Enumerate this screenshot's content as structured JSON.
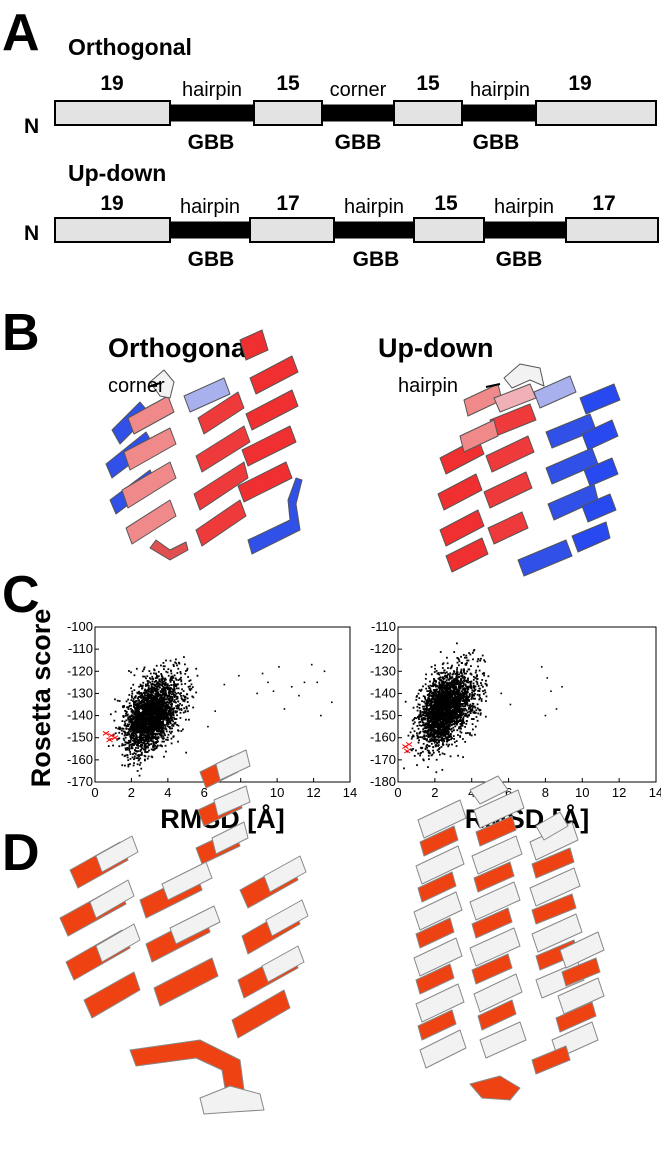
{
  "panel_a": {
    "label": "A",
    "rows": [
      {
        "title": "Orthogonal",
        "terminus": "N",
        "segments": [
          {
            "type": "helix",
            "label": "19"
          },
          {
            "type": "loop",
            "label": "hairpin",
            "sublabel": "GBB"
          },
          {
            "type": "helix",
            "label": "15"
          },
          {
            "type": "loop",
            "label": "corner",
            "sublabel": "GBB"
          },
          {
            "type": "helix",
            "label": "15"
          },
          {
            "type": "loop",
            "label": "hairpin",
            "sublabel": "GBB"
          },
          {
            "type": "helix",
            "label": "19"
          }
        ]
      },
      {
        "title": "Up-down",
        "terminus": "N",
        "segments": [
          {
            "type": "helix",
            "label": "19"
          },
          {
            "type": "loop",
            "label": "hairpin",
            "sublabel": "GBB"
          },
          {
            "type": "helix",
            "label": "17"
          },
          {
            "type": "loop",
            "label": "hairpin",
            "sublabel": "GBB"
          },
          {
            "type": "helix",
            "label": "15"
          },
          {
            "type": "loop",
            "label": "hairpin",
            "sublabel": "GBB"
          },
          {
            "type": "helix",
            "label": "17"
          }
        ]
      }
    ]
  },
  "panel_b": {
    "label": "B",
    "left_title": "Orthogonal",
    "left_annotation": "corner",
    "right_title": "Up-down",
    "right_annotation": "hairpin"
  },
  "panel_c": {
    "label": "C",
    "shared_ylabel": "Rosetta score"
  },
  "chart_data": [
    {
      "type": "scatter",
      "xlabel": "RMSD [Å]",
      "ylabel": "Rosetta score",
      "xlim": [
        0,
        14
      ],
      "ylim": [
        -170,
        -100
      ],
      "xticks": [
        0,
        2,
        4,
        6,
        8,
        10,
        12,
        14
      ],
      "yticks": [
        -100,
        -110,
        -120,
        -130,
        -140,
        -150,
        -160,
        -170
      ],
      "grid": false,
      "colors": {
        "decoys": "#000000",
        "native": "#ff0000"
      },
      "dense_cloud": {
        "x_range": [
          0.6,
          5.8
        ],
        "y_range": [
          -168,
          -112
        ],
        "center": [
          2.4,
          -143
        ]
      },
      "sparse_points": [
        [
          9.2,
          -121
        ],
        [
          9.8,
          -129
        ],
        [
          10.1,
          -118
        ],
        [
          10.4,
          -137
        ],
        [
          10.8,
          -127
        ],
        [
          11.2,
          -131
        ],
        [
          11.9,
          -117
        ],
        [
          12.2,
          -125
        ],
        [
          12.6,
          -120
        ],
        [
          13.0,
          -134
        ],
        [
          12.4,
          -140
        ],
        [
          11.5,
          -125
        ],
        [
          9.5,
          -125
        ],
        [
          8.9,
          -130
        ],
        [
          7.1,
          -126
        ],
        [
          6.6,
          -138
        ],
        [
          7.9,
          -122
        ],
        [
          6.2,
          -145
        ]
      ],
      "native_points": [
        [
          0.6,
          -148
        ],
        [
          0.8,
          -151
        ],
        [
          0.9,
          -149
        ],
        [
          1.1,
          -150
        ]
      ]
    },
    {
      "type": "scatter",
      "xlabel": "RMSD [Å]",
      "ylabel": "",
      "xlim": [
        0,
        14
      ],
      "ylim": [
        -180,
        -110
      ],
      "xticks": [
        0,
        2,
        4,
        6,
        8,
        10,
        12,
        14
      ],
      "yticks": [
        -110,
        -120,
        -130,
        -140,
        -150,
        -160,
        -170,
        -180
      ],
      "grid": false,
      "colors": {
        "decoys": "#000000",
        "native": "#ff0000"
      },
      "dense_cloud": {
        "x_range": [
          0.3,
          5.0
        ],
        "y_range": [
          -178,
          -117
        ],
        "center": [
          1.9,
          -150
        ]
      },
      "sparse_points": [
        [
          7.8,
          -128
        ],
        [
          8.1,
          -133
        ],
        [
          8.3,
          -139
        ],
        [
          8.0,
          -150
        ],
        [
          8.6,
          -147
        ],
        [
          8.9,
          -137
        ],
        [
          6.1,
          -145
        ],
        [
          5.6,
          -140
        ]
      ],
      "native_points": [
        [
          0.4,
          -164
        ],
        [
          0.5,
          -166
        ],
        [
          0.6,
          -163
        ]
      ]
    }
  ],
  "panel_d": {
    "label": "D"
  },
  "colors": {
    "helix_fill": "#e3e3e3",
    "loop_fill": "#000000",
    "red": "#f03030",
    "pink": "#f08a8a",
    "blue": "#3050e8",
    "lightblue": "#a8b0ee",
    "white_ribbon": "#f2f2f2",
    "orange": "#ee4212",
    "grey_edge": "#808080"
  }
}
